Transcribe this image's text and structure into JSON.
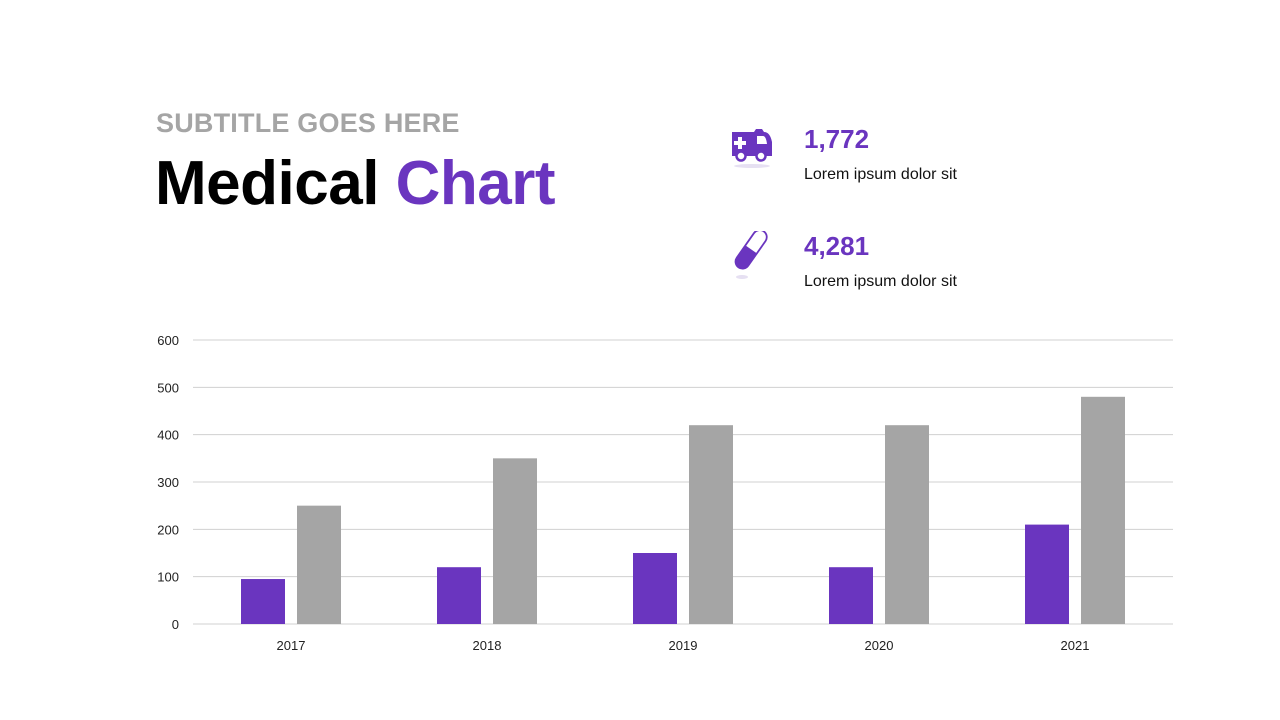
{
  "header": {
    "subtitle": "SUBTITLE GOES HERE",
    "title_main": "Medical",
    "title_accent": "Chart"
  },
  "stats": [
    {
      "icon": "ambulance-icon",
      "value": "1,772",
      "label": "Lorem ipsum dolor sit"
    },
    {
      "icon": "pill-capsule-icon",
      "value": "4,281",
      "label": "Lorem ipsum dolor sit"
    }
  ],
  "colors": {
    "accent": "#6a35bf",
    "secondary": "#a5a5a5",
    "grid": "#d0d0d0"
  },
  "chart_data": {
    "type": "bar",
    "categories": [
      "2017",
      "2018",
      "2019",
      "2020",
      "2021"
    ],
    "series": [
      {
        "values": [
          95,
          120,
          150,
          120,
          210
        ],
        "color": "#6a35bf"
      },
      {
        "values": [
          250,
          350,
          420,
          420,
          480
        ],
        "color": "#a5a5a5"
      }
    ],
    "ylim": [
      0,
      600
    ],
    "yticks": [
      0,
      100,
      200,
      300,
      400,
      500,
      600
    ],
    "grid": true,
    "legend": "none"
  }
}
